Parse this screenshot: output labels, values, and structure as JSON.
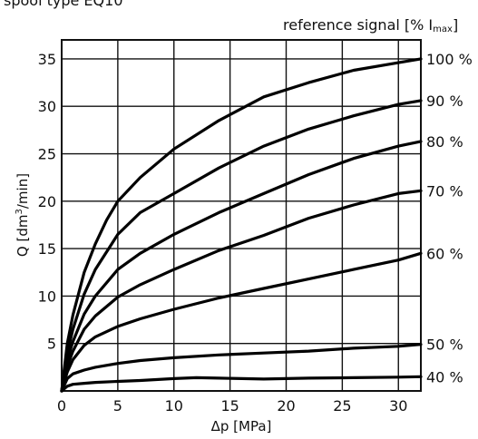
{
  "chart_data": {
    "type": "line",
    "title": "spool type EQ10",
    "legend_title": "reference signal [% I",
    "legend_title_sub": "max",
    "legend_title_end": "]",
    "xlabel": "Δp [MPa]",
    "ylabel_main": "Q [dm",
    "ylabel_sup": "3",
    "ylabel_end": "/min]",
    "xlim": [
      0,
      32
    ],
    "ylim": [
      0,
      37
    ],
    "xticks": [
      0,
      5,
      10,
      15,
      20,
      25,
      30
    ],
    "yticks": [
      5,
      10,
      15,
      20,
      25,
      30,
      35
    ],
    "grid": true,
    "legend_placement": "right",
    "series": [
      {
        "name": "100 %",
        "x": [
          0,
          0.5,
          1,
          2,
          3,
          4,
          5,
          7,
          10,
          14,
          18,
          22,
          26,
          30,
          32
        ],
        "y": [
          0,
          5,
          8,
          12.5,
          15.5,
          18,
          20,
          22.5,
          25.5,
          28.5,
          31,
          32.5,
          33.8,
          34.6,
          35
        ]
      },
      {
        "name": "90 %",
        "x": [
          0,
          0.5,
          1,
          2,
          3,
          5,
          7,
          10,
          14,
          18,
          22,
          26,
          30,
          32
        ],
        "y": [
          0,
          4,
          6.5,
          10.2,
          12.8,
          16.5,
          18.8,
          20.8,
          23.5,
          25.8,
          27.6,
          29,
          30.2,
          30.6
        ]
      },
      {
        "name": "80 %",
        "x": [
          0,
          0.5,
          1,
          2,
          3,
          5,
          7,
          10,
          14,
          18,
          22,
          26,
          30,
          32
        ],
        "y": [
          0,
          3.3,
          5.2,
          8.1,
          10,
          12.8,
          14.5,
          16.5,
          18.8,
          20.8,
          22.8,
          24.5,
          25.8,
          26.3
        ]
      },
      {
        "name": "70 %",
        "x": [
          0,
          0.5,
          1,
          2,
          3,
          5,
          7,
          10,
          14,
          18,
          22,
          26,
          30,
          32
        ],
        "y": [
          0,
          2.6,
          4.2,
          6.5,
          7.9,
          9.9,
          11.2,
          12.8,
          14.8,
          16.4,
          18.2,
          19.6,
          20.8,
          21.1
        ]
      },
      {
        "name": "60 %",
        "x": [
          0,
          0.5,
          1,
          2,
          3,
          5,
          7,
          10,
          14,
          18,
          22,
          26,
          30,
          32
        ],
        "y": [
          0,
          2,
          3.3,
          4.8,
          5.7,
          6.8,
          7.6,
          8.6,
          9.8,
          10.8,
          11.8,
          12.8,
          13.8,
          14.5
        ]
      },
      {
        "name": "50 %",
        "x": [
          0,
          0.5,
          1,
          2,
          3,
          5,
          7,
          10,
          14,
          18,
          22,
          26,
          30,
          32
        ],
        "y": [
          0,
          1.3,
          1.8,
          2.2,
          2.5,
          2.9,
          3.2,
          3.5,
          3.8,
          4,
          4.2,
          4.5,
          4.7,
          4.9
        ]
      },
      {
        "name": "40 %",
        "x": [
          0,
          0.5,
          1,
          2,
          3,
          5,
          7,
          10,
          12,
          14,
          18,
          22,
          26,
          30,
          32
        ],
        "y": [
          0,
          0.5,
          0.7,
          0.8,
          0.9,
          1.0,
          1.1,
          1.3,
          1.4,
          1.35,
          1.25,
          1.35,
          1.4,
          1.45,
          1.5
        ]
      }
    ]
  }
}
